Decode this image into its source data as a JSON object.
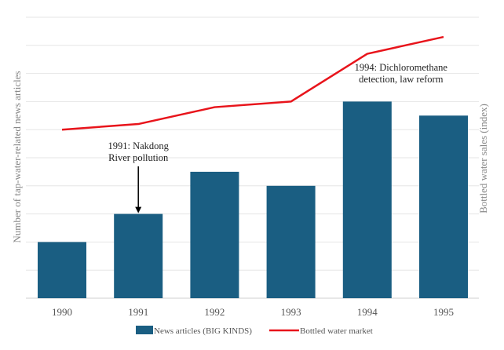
{
  "chart_data": {
    "type": "bar",
    "categories": [
      "1990",
      "1991",
      "1992",
      "1993",
      "1994",
      "1995"
    ],
    "series": [
      {
        "name": "News articles (BIG KINDS)",
        "kind": "bar",
        "axis": "left",
        "color": "#1a5e82",
        "values": [
          2,
          3,
          4.5,
          4,
          7,
          6.5
        ]
      },
      {
        "name": "Bottled water market",
        "kind": "line",
        "axis": "right",
        "color": "#e8141b",
        "values": [
          6,
          6.2,
          6.8,
          7,
          8.7,
          9.3
        ]
      }
    ],
    "ylim": [
      0,
      10
    ],
    "ylabel": "Number of tap-water-related news articles",
    "y2label": "Bottled water sales (index)",
    "xlabel": "",
    "title": "",
    "grid": true,
    "annotations": [
      {
        "category": "1991",
        "text_lines": [
          "1991: Nakdong",
          "River pollution"
        ],
        "arrow": true
      },
      {
        "category": "1994",
        "text_lines": [
          "1994: Dichloromethane",
          "detection, law reform"
        ],
        "arrow": false
      }
    ],
    "legend": {
      "position": "bottom",
      "items": [
        "News articles (BIG KINDS)",
        "Bottled water market"
      ]
    }
  }
}
